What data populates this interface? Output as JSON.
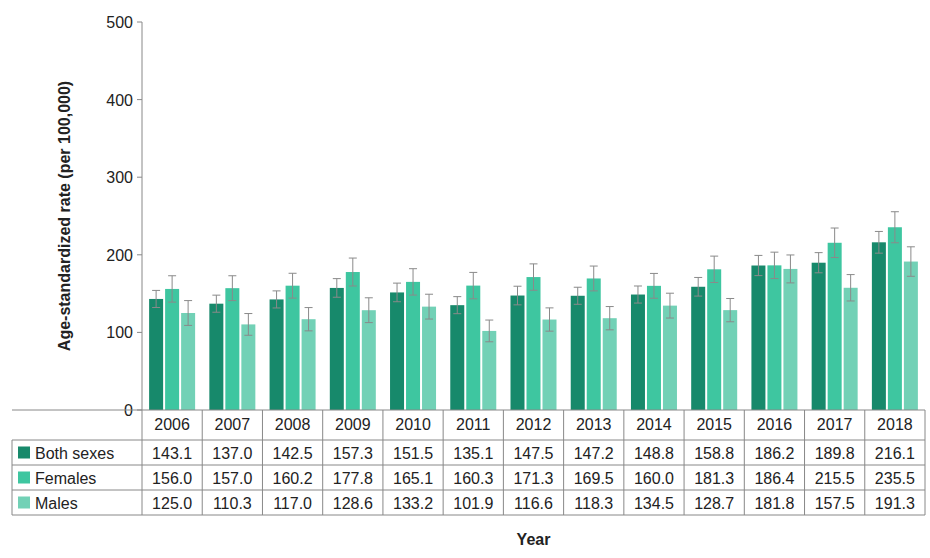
{
  "chart_data": {
    "type": "bar",
    "x_label": "Year",
    "y_label": "Age-standardized rate (per 100,000)",
    "categories": [
      "2006",
      "2007",
      "2008",
      "2009",
      "2010",
      "2011",
      "2012",
      "2013",
      "2014",
      "2015",
      "2016",
      "2017",
      "2018"
    ],
    "series": [
      {
        "name": "Both sexes",
        "color": "#17896b",
        "values": [
          143.1,
          137.0,
          142.5,
          157.3,
          151.5,
          135.1,
          147.5,
          147.2,
          148.8,
          158.8,
          186.2,
          189.8,
          216.1
        ],
        "value_labels": [
          "143.1",
          "137.0",
          "142.5",
          "157.3",
          "151.5",
          "135.1",
          "147.5",
          "147.2",
          "148.8",
          "158.8",
          "186.2",
          "189.8",
          "216.1"
        ],
        "errors": [
          11,
          11,
          11,
          12,
          12,
          11,
          12,
          11,
          11,
          12,
          13,
          13,
          14
        ]
      },
      {
        "name": "Females",
        "color": "#3ec6a0",
        "values": [
          156.0,
          157.0,
          160.2,
          177.8,
          165.1,
          160.3,
          171.3,
          169.5,
          160.0,
          181.3,
          186.4,
          215.5,
          235.5
        ],
        "value_labels": [
          "156.0",
          "157.0",
          "160.2",
          "177.8",
          "165.1",
          "160.3",
          "171.3",
          "169.5",
          "160.0",
          "181.3",
          "186.4",
          "215.5",
          "235.5"
        ],
        "errors": [
          17,
          16,
          16,
          18,
          17,
          17,
          17,
          16,
          16,
          17,
          17,
          19,
          20
        ]
      },
      {
        "name": "Males",
        "color": "#72d1b6",
        "values": [
          125.0,
          110.3,
          117.0,
          128.6,
          133.2,
          101.9,
          116.6,
          118.3,
          134.5,
          128.7,
          181.8,
          157.5,
          191.3
        ],
        "value_labels": [
          "125.0",
          "110.3",
          "117.0",
          "128.6",
          "133.2",
          "101.9",
          "116.6",
          "118.3",
          "134.5",
          "128.7",
          "181.8",
          "157.5",
          "191.3"
        ],
        "errors": [
          16,
          14,
          15,
          16,
          16,
          14,
          15,
          15,
          16,
          15,
          18,
          17,
          19
        ]
      }
    ],
    "ylim": [
      0,
      500
    ],
    "yticks": [
      0,
      100,
      200,
      300,
      400,
      500
    ],
    "grid": false
  }
}
